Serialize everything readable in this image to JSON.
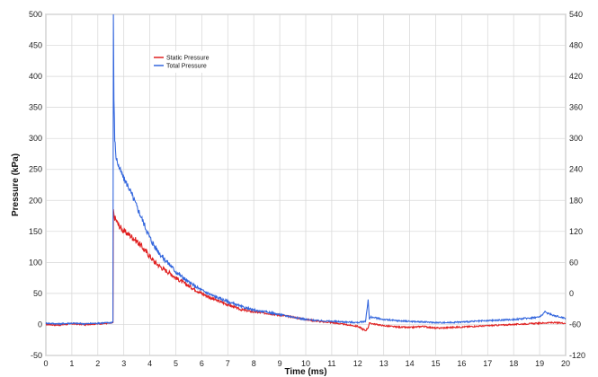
{
  "chart_data": {
    "type": "line",
    "xlabel": "Time (ms)",
    "ylabel": "Pressure (kPa)",
    "xlim": [
      0,
      20
    ],
    "ylim": [
      -50,
      500
    ],
    "y2lim": [
      -120,
      540
    ],
    "grid": true,
    "legend_position": "top-left",
    "x_ticks": [
      0,
      1,
      2,
      3,
      4,
      5,
      6,
      7,
      8,
      9,
      10,
      11,
      12,
      13,
      14,
      15,
      16,
      17,
      18,
      19,
      20
    ],
    "y_ticks": [
      -50,
      0,
      50,
      100,
      150,
      200,
      250,
      300,
      350,
      400,
      450,
      500
    ],
    "y2_ticks": [
      -120,
      -60,
      0,
      60,
      120,
      180,
      240,
      300,
      360,
      420,
      480,
      540
    ],
    "series": [
      {
        "name": "Static Pressure",
        "color": "#e02020",
        "x": [
          0,
          0.5,
          1,
          1.5,
          2,
          2.5,
          2.58,
          2.6,
          2.62,
          2.7,
          2.8,
          2.9,
          3,
          3.2,
          3.4,
          3.6,
          3.8,
          4,
          4.2,
          4.5,
          4.8,
          5,
          5.5,
          6,
          6.5,
          7,
          7.5,
          8,
          8.5,
          9,
          9.5,
          10,
          10.5,
          11,
          11.5,
          12,
          12.3,
          12.4,
          12.45,
          12.6,
          13,
          13.5,
          14,
          14.5,
          15,
          15.5,
          16,
          16.5,
          17,
          17.5,
          18,
          18.5,
          19,
          19.5,
          20
        ],
        "y": [
          0,
          -1,
          1,
          0,
          1,
          2,
          3,
          185,
          175,
          168,
          160,
          155,
          150,
          145,
          138,
          130,
          120,
          110,
          100,
          90,
          82,
          75,
          62,
          50,
          40,
          32,
          24,
          20,
          18,
          15,
          12,
          8,
          5,
          3,
          0,
          -3,
          -10,
          -5,
          2,
          1,
          -2,
          -4,
          -5,
          -3,
          -6,
          -5,
          -4,
          -3,
          -2,
          -1,
          0,
          1,
          2,
          3,
          2
        ]
      },
      {
        "name": "Total Pressure",
        "color": "#3366dd",
        "x": [
          0,
          0.5,
          1,
          1.5,
          2,
          2.5,
          2.58,
          2.6,
          2.62,
          2.65,
          2.7,
          2.8,
          2.9,
          3,
          3.1,
          3.2,
          3.3,
          3.4,
          3.6,
          3.8,
          4,
          4.2,
          4.5,
          4.8,
          5,
          5.5,
          6,
          6.5,
          7,
          7.5,
          8,
          8.5,
          9,
          9.5,
          10,
          10.5,
          11,
          11.5,
          12,
          12.3,
          12.4,
          12.45,
          12.5,
          13,
          13.5,
          14,
          14.5,
          15,
          15.5,
          16,
          16.5,
          17,
          17.5,
          18,
          18.5,
          19,
          19.2,
          19.5,
          20
        ],
        "y": [
          2,
          1,
          2,
          1,
          2,
          3,
          4,
          500,
          360,
          300,
          270,
          255,
          245,
          235,
          228,
          220,
          210,
          200,
          180,
          160,
          140,
          125,
          108,
          95,
          85,
          68,
          55,
          45,
          37,
          29,
          23,
          20,
          16,
          12,
          8,
          6,
          5,
          4,
          3,
          5,
          40,
          8,
          12,
          8,
          6,
          5,
          4,
          3,
          3,
          4,
          5,
          6,
          7,
          8,
          10,
          12,
          20,
          15,
          10
        ]
      }
    ]
  }
}
